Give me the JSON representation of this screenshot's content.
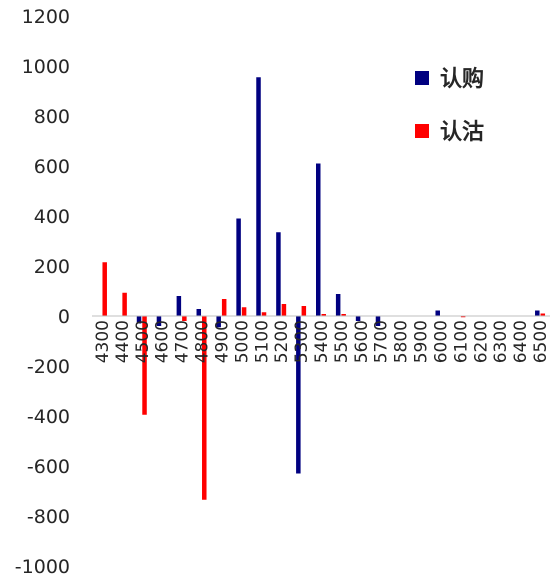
{
  "chart_data": {
    "type": "bar",
    "title": "",
    "xlabel": "",
    "ylabel": "",
    "ylim": [
      -1000,
      1200
    ],
    "y_ticks": [
      1200,
      1000,
      800,
      600,
      400,
      200,
      0,
      -200,
      -400,
      -600,
      -800,
      -1000
    ],
    "grid": false,
    "legend_position": "top-right",
    "categories": [
      "4300",
      "4400",
      "4500",
      "4600",
      "4700",
      "4800",
      "4900",
      "5000",
      "5100",
      "5200",
      "5300",
      "5400",
      "5500",
      "5600",
      "5700",
      "5800",
      "5900",
      "6000",
      "6100",
      "6200",
      "6300",
      "6400",
      "6500"
    ],
    "series": [
      {
        "name": "认购",
        "color": "#000080",
        "values": [
          0,
          0,
          -30,
          -40,
          80,
          28,
          -45,
          390,
          955,
          335,
          -630,
          610,
          88,
          -20,
          -40,
          0,
          0,
          22,
          0,
          0,
          0,
          0,
          22
        ]
      },
      {
        "name": "认沽",
        "color": "#ff0000",
        "values": [
          215,
          93,
          -395,
          0,
          -20,
          -735,
          68,
          35,
          15,
          48,
          40,
          8,
          8,
          0,
          0,
          0,
          0,
          0,
          -5,
          0,
          0,
          0,
          10
        ]
      }
    ]
  }
}
